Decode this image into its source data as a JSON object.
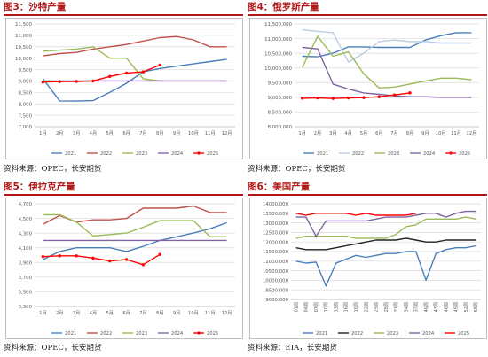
{
  "panels": [
    {
      "title": "图3：沙特产量",
      "source": "资料来源：OPEC，长安期货",
      "chart_data": {
        "type": "line",
        "categories": [
          "1月",
          "2月",
          "3月",
          "4月",
          "5月",
          "6月",
          "7月",
          "8月",
          "9月",
          "10月",
          "11月",
          "12月"
        ],
        "ylim": [
          7000,
          11500
        ],
        "yticks": [
          "7,000",
          "7,500",
          "8,000",
          "8,500",
          "9,000",
          "9,500",
          "10,000",
          "10,500",
          "11,000",
          "11,500"
        ],
        "grid": true,
        "legend_position": "bottom",
        "series": [
          {
            "name": "2021",
            "color": "#4a7ebb",
            "values": [
              9100,
              8130,
              8120,
              8140,
              8500,
              8900,
              9400,
              9550,
              9650,
              9750,
              9850,
              9950
            ]
          },
          {
            "name": "2022",
            "color": "#c0504d",
            "values": [
              10100,
              10200,
              10250,
              10400,
              10500,
              10600,
              10750,
              10900,
              10950,
              10800,
              10500,
              10500
            ]
          },
          {
            "name": "2023",
            "color": "#9bbb59",
            "values": [
              10300,
              10350,
              10400,
              10500,
              10000,
              10000,
              9100,
              9000,
              9000,
              9000,
              9000,
              9000
            ]
          },
          {
            "name": "2024",
            "color": "#8064a2",
            "values": [
              9000,
              9000,
              9000,
              9000,
              9000,
              9000,
              9000,
              9000,
              9000,
              9000,
              9000,
              9000
            ]
          },
          {
            "name": "2025",
            "color": "#ff0000",
            "marker": true,
            "values": [
              8950,
              8970,
              8980,
              9000,
              9200,
              9350,
              9400,
              9700,
              null,
              null,
              null,
              null
            ]
          }
        ]
      }
    },
    {
      "title": "图4：俄罗斯产量",
      "source": "资料来源：OPEC，长安期货",
      "chart_data": {
        "type": "line",
        "categories": [
          "1月",
          "2月",
          "3月",
          "4月",
          "5月",
          "6月",
          "7月",
          "8月",
          "9月",
          "10月",
          "11月",
          "12月"
        ],
        "ylim": [
          8000000,
          11500000
        ],
        "yticks": [
          "8,000,000",
          "8,500,000",
          "9,000,000",
          "9,500,000",
          "10,000,000",
          "10,500,000",
          "11,000,000",
          "11,500,000"
        ],
        "grid": true,
        "legend_position": "bottom",
        "series": [
          {
            "name": "2021",
            "color": "#4a7ebb",
            "values": [
              10400000,
              10380000,
              10500000,
              10720000,
              10720000,
              10700000,
              10700000,
              10700000,
              10950000,
              11100000,
              11200000,
              11200000
            ]
          },
          {
            "name": "2022",
            "color": "#b9cde5",
            "values": [
              11300000,
              11250000,
              11200000,
              10200000,
              10500000,
              10900000,
              10950000,
              10900000,
              10900000,
              10850000,
              10850000,
              10850000
            ]
          },
          {
            "name": "2023",
            "color": "#9bbb59",
            "values": [
              10020000,
              11080000,
              10400000,
              10550000,
              9800000,
              9320000,
              9350000,
              9450000,
              9550000,
              9650000,
              9650000,
              9600000
            ]
          },
          {
            "name": "2024",
            "color": "#8064a2",
            "values": [
              10700000,
              10650000,
              9450000,
              9280000,
              9150000,
              9100000,
              9050000,
              9020000,
              9020000,
              9000000,
              9000000,
              9000000
            ]
          },
          {
            "name": "2025",
            "color": "#ff0000",
            "marker": true,
            "values": [
              8970000,
              8980000,
              8960000,
              8980000,
              8990000,
              9020000,
              9080000,
              9150000,
              null,
              null,
              null,
              null
            ]
          }
        ]
      }
    },
    {
      "title": "图5：伊拉克产量",
      "source": "资料来源：OPEC，长安期货",
      "chart_data": {
        "type": "line",
        "categories": [
          "1月",
          "2月",
          "3月",
          "4月",
          "5月",
          "6月",
          "7月",
          "8月",
          "9月",
          "10月",
          "11月",
          "12月"
        ],
        "ylim": [
          3300,
          4700
        ],
        "yticks": [
          "3,300",
          "3,500",
          "3,700",
          "3,900",
          "4,100",
          "4,300",
          "4,500",
          "4,700"
        ],
        "grid": true,
        "legend_position": "bottom",
        "series": [
          {
            "name": "2021",
            "color": "#4a7ebb",
            "values": [
              3940,
              4050,
              4100,
              4100,
              4100,
              4050,
              4120,
              4200,
              4250,
              4300,
              4360,
              4440
            ]
          },
          {
            "name": "2022",
            "color": "#c0504d",
            "values": [
              4420,
              4540,
              4450,
              4480,
              4480,
              4500,
              4640,
              4640,
              4640,
              4670,
              4580,
              4580
            ]
          },
          {
            "name": "2023",
            "color": "#9bbb59",
            "values": [
              4550,
              4550,
              4450,
              4260,
              4280,
              4300,
              4380,
              4470,
              4470,
              4470,
              4250,
              4250
            ]
          },
          {
            "name": "2024",
            "color": "#8064a2",
            "values": [
              4200,
              4200,
              4200,
              4200,
              4200,
              4200,
              4200,
              4200,
              4200,
              4200,
              4200,
              4200
            ]
          },
          {
            "name": "2025",
            "color": "#ff0000",
            "marker": true,
            "values": [
              3980,
              3990,
              3990,
              3960,
              3920,
              3940,
              3870,
              4010,
              null,
              null,
              null,
              null
            ]
          }
        ]
      }
    },
    {
      "title": "图6：美国产量",
      "source": "资料来源：EIA，长安期货",
      "chart_data": {
        "type": "line",
        "categories": [
          "01周",
          "04周",
          "07周",
          "10周",
          "13周",
          "16周",
          "19周",
          "22周",
          "25周",
          "28周",
          "31周",
          "34周",
          "37周",
          "40周",
          "43周",
          "46周",
          "49周",
          "52周",
          "55周"
        ],
        "ylim": [
          9000,
          14000
        ],
        "yticks": [
          "9000.000",
          "9500.000",
          "10000.000",
          "10500.000",
          "11000.000",
          "11500.000",
          "12000.000",
          "12500.000",
          "13000.000",
          "13500.000",
          "14000.000"
        ],
        "grid": true,
        "legend_position": "bottom",
        "series": [
          {
            "name": "2021",
            "color": "#4a7ebb",
            "values": [
              11000,
              10900,
              10950,
              9700,
              10900,
              11100,
              11300,
              11200,
              11300,
              11400,
              11400,
              11500,
              11500,
              10000,
              11400,
              11600,
              11700,
              11700,
              11800
            ]
          },
          {
            "name": "2022",
            "color": "#222222",
            "values": [
              11700,
              11600,
              11600,
              11600,
              11700,
              11800,
              11900,
              12000,
              12100,
              12100,
              12100,
              12200,
              12100,
              12000,
              12000,
              12100,
              12100,
              12100,
              12100
            ]
          },
          {
            "name": "2023",
            "color": "#9bbb59",
            "values": [
              12200,
              12300,
              12300,
              12300,
              12300,
              12300,
              12200,
              12200,
              12200,
              12200,
              12400,
              12800,
              12900,
              13200,
              13200,
              13200,
              13200,
              13300,
              13200
            ]
          },
          {
            "name": "2024",
            "color": "#8064a2",
            "values": [
              13300,
              13300,
              12300,
              13100,
              13100,
              13100,
              13100,
              13100,
              13200,
              13300,
              13300,
              13300,
              13400,
              13500,
              13500,
              13300,
              13500,
              13600,
              13600
            ]
          },
          {
            "name": "2025",
            "color": "#ff0000",
            "values": [
              13500,
              13400,
              13500,
              13500,
              13500,
              13500,
              13400,
              13500,
              13400,
              13400,
              13400,
              13400,
              13500,
              null,
              null,
              null,
              null,
              null,
              null
            ]
          }
        ]
      }
    }
  ]
}
